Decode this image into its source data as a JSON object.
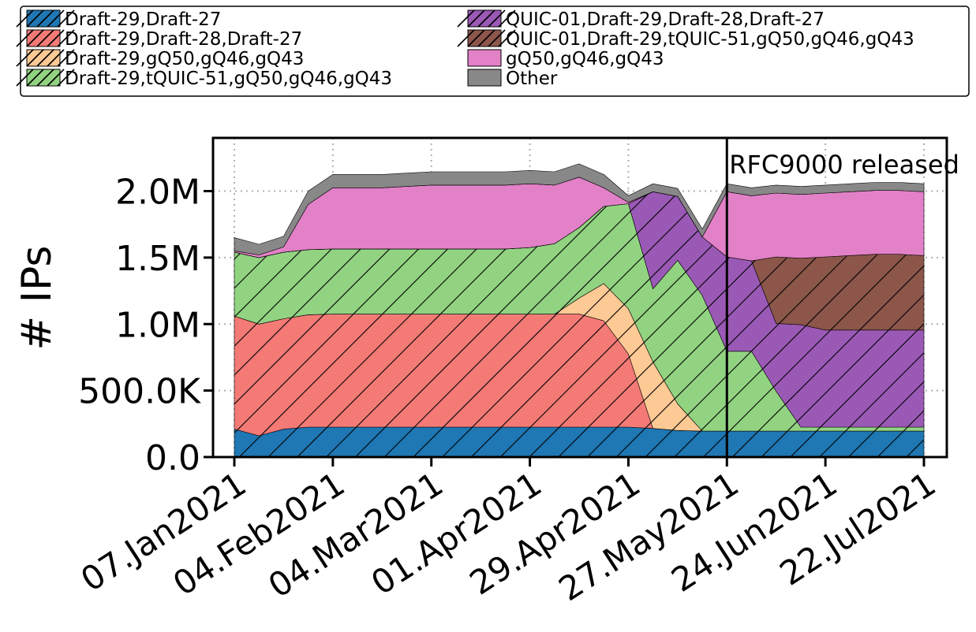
{
  "chart_data": {
    "type": "area",
    "stacked": true,
    "ylabel": "# IPs",
    "xlabel": "",
    "ylim": [
      0,
      2400000
    ],
    "xlim": [
      "2021-01-07",
      "2021-07-22"
    ],
    "grid": true,
    "legend_placement": "top",
    "x_ticks": [
      "07.Jan2021",
      "04.Feb2021",
      "04.Mar2021",
      "01.Apr2021",
      "29.Apr2021",
      "27.May2021",
      "24.Jun2021",
      "22.Jul2021"
    ],
    "y_ticks": [
      "0.0",
      "500.0K",
      "1.0M",
      "1.5M",
      "2.0M"
    ],
    "annotation": {
      "text": "RFC9000 released",
      "date": "2021-05-27"
    },
    "x": [
      "2021-01-07",
      "2021-01-14",
      "2021-01-21",
      "2021-01-28",
      "2021-02-04",
      "2021-02-11",
      "2021-02-18",
      "2021-02-25",
      "2021-03-04",
      "2021-03-11",
      "2021-03-18",
      "2021-03-25",
      "2021-04-01",
      "2021-04-08",
      "2021-04-15",
      "2021-04-22",
      "2021-04-29",
      "2021-05-06",
      "2021-05-13",
      "2021-05-20",
      "2021-05-27",
      "2021-06-03",
      "2021-06-10",
      "2021-06-17",
      "2021-06-24",
      "2021-07-01",
      "2021-07-08",
      "2021-07-15",
      "2021-07-22"
    ],
    "series": [
      {
        "name": "Draft-29,Draft-27",
        "color": "#1f77b4",
        "hatch": true,
        "values": [
          210000,
          160000,
          210000,
          225000,
          225000,
          225000,
          225000,
          225000,
          225000,
          225000,
          225000,
          225000,
          225000,
          225000,
          225000,
          225000,
          225000,
          215000,
          200000,
          195000,
          195000,
          195000,
          195000,
          195000,
          195000,
          195000,
          195000,
          195000,
          195000
        ]
      },
      {
        "name": "Draft-29,Draft-28,Draft-27",
        "color": "#f47a76",
        "hatch": true,
        "values": [
          850000,
          840000,
          830000,
          845000,
          850000,
          850000,
          850000,
          850000,
          850000,
          850000,
          850000,
          850000,
          850000,
          850000,
          850000,
          800000,
          550000,
          0,
          0,
          0,
          0,
          0,
          0,
          0,
          0,
          0,
          0,
          0,
          0
        ]
      },
      {
        "name": "Draft-29,gQ50,gQ46,gQ43",
        "color": "#fdc994",
        "hatch": true,
        "values": [
          0,
          0,
          0,
          0,
          0,
          0,
          0,
          0,
          0,
          0,
          0,
          0,
          0,
          0,
          120000,
          280000,
          340000,
          500000,
          200000,
          0,
          0,
          0,
          0,
          0,
          0,
          0,
          0,
          0,
          0
        ]
      },
      {
        "name": "Draft-29,tQUIC-51,gQ50,gQ46,gQ43",
        "color": "#92d382",
        "hatch": true,
        "values": [
          480000,
          500000,
          500000,
          490000,
          490000,
          490000,
          490000,
          490000,
          490000,
          490000,
          490000,
          490000,
          500000,
          530000,
          530000,
          580000,
          790000,
          550000,
          1080000,
          1020000,
          600000,
          600000,
          300000,
          30000,
          30000,
          30000,
          30000,
          30000,
          30000
        ]
      },
      {
        "name": "QUIC-01,Draft-29,Draft-28,Draft-27",
        "color": "#9b59b6",
        "hatch": true,
        "values": [
          0,
          0,
          0,
          0,
          0,
          0,
          0,
          0,
          0,
          0,
          0,
          0,
          0,
          0,
          0,
          0,
          0,
          730000,
          480000,
          440000,
          710000,
          680000,
          510000,
          770000,
          730000,
          730000,
          730000,
          730000,
          730000
        ]
      },
      {
        "name": "QUIC-01,Draft-29,tQUIC-51,gQ50,gQ46,gQ43",
        "color": "#8c564b",
        "hatch": true,
        "values": [
          0,
          0,
          0,
          0,
          0,
          0,
          0,
          0,
          0,
          0,
          0,
          0,
          0,
          0,
          0,
          0,
          0,
          0,
          0,
          0,
          0,
          0,
          500000,
          500000,
          550000,
          560000,
          570000,
          570000,
          560000
        ]
      },
      {
        "name": "gQ50,gQ46,gQ43",
        "color": "#e281c7",
        "hatch": false,
        "values": [
          10000,
          20000,
          40000,
          340000,
          460000,
          460000,
          460000,
          470000,
          480000,
          480000,
          480000,
          480000,
          480000,
          440000,
          380000,
          140000,
          10000,
          0,
          0,
          0,
          490000,
          490000,
          480000,
          480000,
          480000,
          480000,
          480000,
          480000,
          480000
        ]
      },
      {
        "name": "Other",
        "color": "#888888",
        "hatch": false,
        "values": [
          100000,
          80000,
          80000,
          100000,
          100000,
          100000,
          100000,
          100000,
          100000,
          100000,
          100000,
          100000,
          100000,
          100000,
          100000,
          100000,
          50000,
          60000,
          60000,
          60000,
          60000,
          60000,
          60000,
          60000,
          60000,
          60000,
          60000,
          60000,
          60000
        ]
      }
    ]
  }
}
